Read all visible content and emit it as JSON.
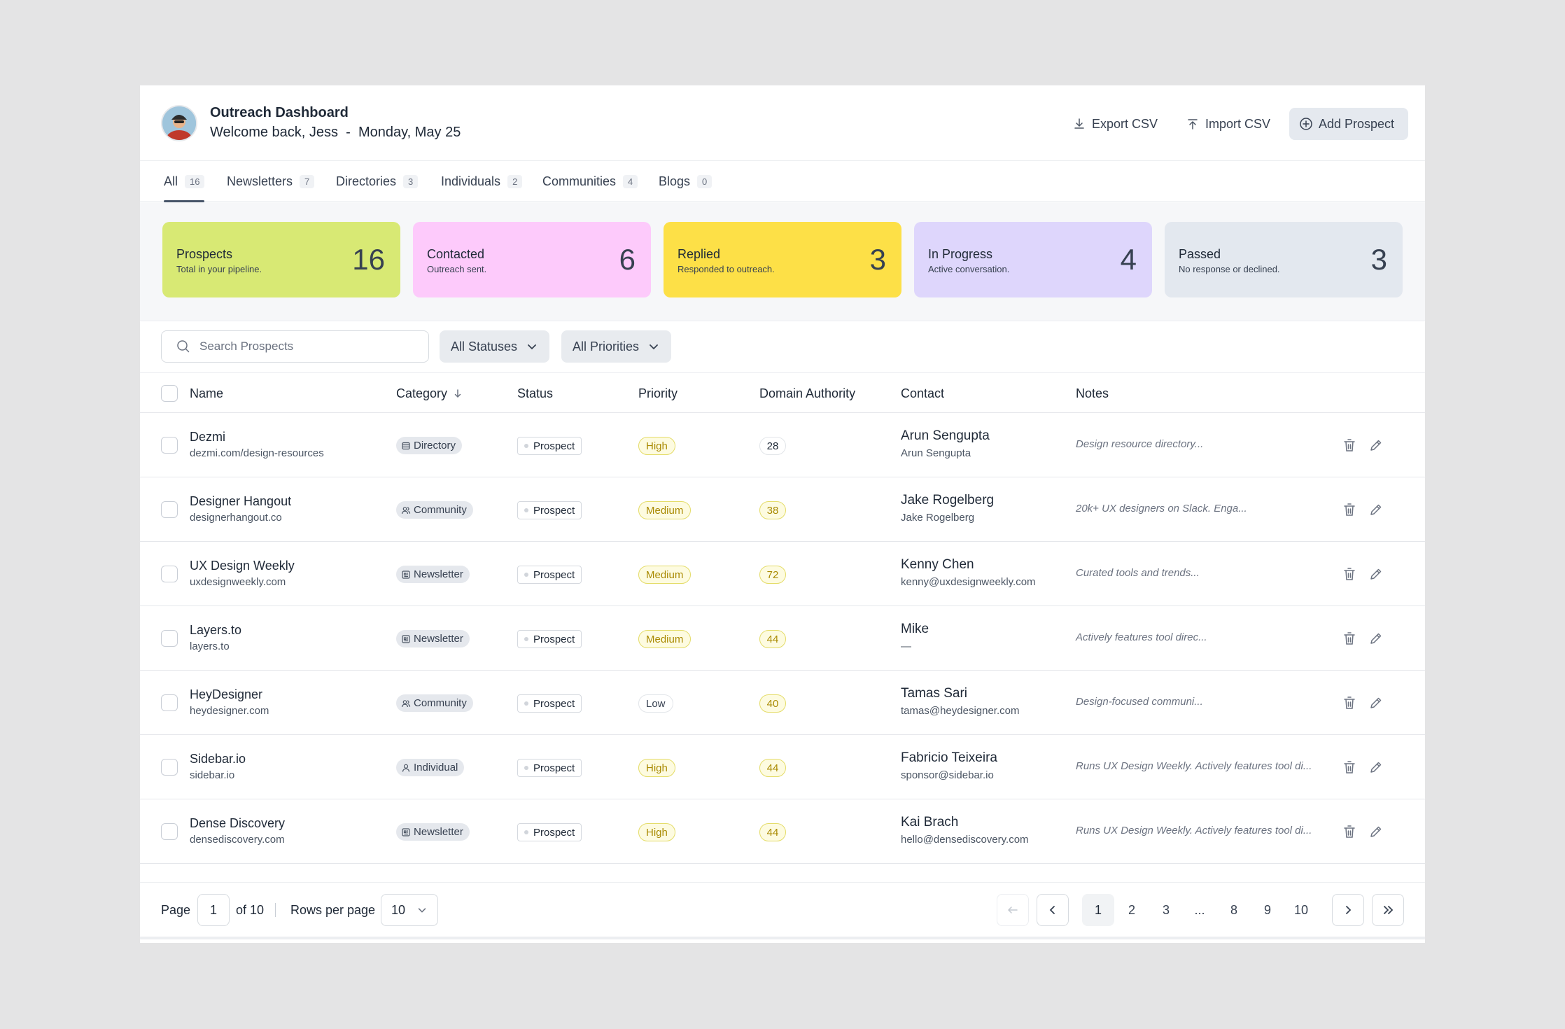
{
  "header": {
    "title": "Outreach Dashboard",
    "welcome": "Welcome back, Jess",
    "separator": "-",
    "date": "Monday, May 25",
    "export_label": "Export CSV",
    "import_label": "Import CSV",
    "add_label": "Add Prospect"
  },
  "tabs": [
    {
      "label": "All",
      "count": "16",
      "active": true
    },
    {
      "label": "Newsletters",
      "count": "7"
    },
    {
      "label": "Directories",
      "count": "3"
    },
    {
      "label": "Individuals",
      "count": "2"
    },
    {
      "label": "Communities",
      "count": "4"
    },
    {
      "label": "Blogs",
      "count": "0"
    }
  ],
  "stats": [
    {
      "label": "Prospects",
      "sub": "Total in your pipeline.",
      "value": "16",
      "color": "#d8e974"
    },
    {
      "label": "Contacted",
      "sub": "Outreach sent.",
      "value": "6",
      "color": "#fdcafb"
    },
    {
      "label": "Replied",
      "sub": "Responded to outreach.",
      "value": "3",
      "color": "#fde047"
    },
    {
      "label": "In Progress",
      "sub": "Active conversation.",
      "value": "4",
      "color": "#ded6fc"
    },
    {
      "label": "Passed",
      "sub": "No response or declined.",
      "value": "3",
      "color": "#e3e8ef"
    }
  ],
  "filters": {
    "search_placeholder": "Search Prospects",
    "status_label": "All Statuses",
    "priority_label": "All Priorities"
  },
  "columns": {
    "name": "Name",
    "category": "Category",
    "status": "Status",
    "priority": "Priority",
    "domain_authority": "Domain Authority",
    "contact": "Contact",
    "notes": "Notes"
  },
  "rows": [
    {
      "name": "Dezmi",
      "url": "dezmi.com/design-resources",
      "category": "Directory",
      "category_icon": "directory-icon",
      "status": "Prospect",
      "priority": "High",
      "da": "28",
      "contact": "Arun Sengupta",
      "email": "Arun Sengupta",
      "notes": "Design resource directory..."
    },
    {
      "name": "Designer Hangout",
      "url": "designerhangout.co",
      "category": "Community",
      "category_icon": "community-icon",
      "status": "Prospect",
      "priority": "Medium",
      "da": "38",
      "contact": "Jake Rogelberg",
      "email": "Jake Rogelberg",
      "notes": "20k+ UX designers on Slack. Enga..."
    },
    {
      "name": "UX Design Weekly",
      "url": "uxdesignweekly.com",
      "category": "Newsletter",
      "category_icon": "newsletter-icon",
      "status": "Prospect",
      "priority": "Medium",
      "da": "72",
      "contact": "Kenny Chen",
      "email": "kenny@uxdesignweekly.com",
      "notes": "Curated tools and trends..."
    },
    {
      "name": "Layers.to",
      "url": "layers.to",
      "category": "Newsletter",
      "category_icon": "newsletter-icon",
      "status": "Prospect",
      "priority": "Medium",
      "da": "44",
      "contact": "Mike",
      "email": "—",
      "notes": "Actively features tool direc..."
    },
    {
      "name": "HeyDesigner",
      "url": "heydesigner.com",
      "category": "Community",
      "category_icon": "community-icon",
      "status": "Prospect",
      "priority": "Low",
      "da": "40",
      "contact": "Tamas Sari",
      "email": "tamas@heydesigner.com",
      "notes": "Design-focused communi..."
    },
    {
      "name": "Sidebar.io",
      "url": "sidebar.io",
      "category": "Individual",
      "category_icon": "individual-icon",
      "status": "Prospect",
      "priority": "High",
      "da": "44",
      "contact": "Fabricio Teixeira",
      "email": "sponsor@sidebar.io",
      "notes": "Runs UX Design Weekly. Actively features tool di..."
    },
    {
      "name": "Dense Discovery",
      "url": "densediscovery.com",
      "category": "Newsletter",
      "category_icon": "newsletter-icon",
      "status": "Prospect",
      "priority": "High",
      "da": "44",
      "contact": "Kai Brach",
      "email": "hello@densediscovery.com",
      "notes": "Runs UX Design Weekly. Actively features tool di..."
    }
  ],
  "pagination": {
    "page_label": "Page",
    "current_page": "1",
    "of_label": "of 10",
    "rows_label": "Rows per page",
    "rows_value": "10",
    "pages": [
      "1",
      "2",
      "3",
      "...",
      "8",
      "9",
      "10"
    ]
  }
}
